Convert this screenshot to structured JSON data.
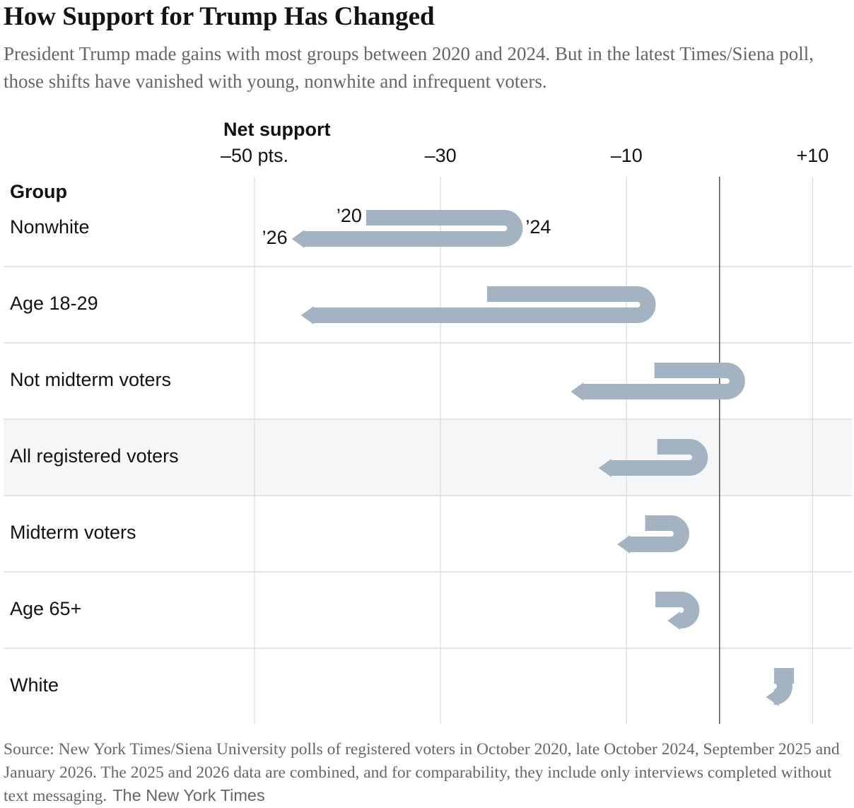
{
  "header": {
    "title": "How Support for Trump Has Changed",
    "subtitle": "President Trump made gains with most groups between 2020 and 2024. But in the latest Times/Siena poll, those shifts have vanished with young, nonwhite and infrequent voters."
  },
  "chart_data": {
    "type": "arrow-turn",
    "x_axis_label": "Net support",
    "category_label": "Group",
    "categories": [
      "Nonwhite",
      "Age 18-29",
      "Not midterm voters",
      "All registered voters",
      "Midterm voters",
      "Age 65+",
      "White"
    ],
    "series": [
      {
        "name": "’20",
        "values": [
          -38,
          -25,
          -7,
          -6.7,
          -8,
          -6.9,
          8
        ]
      },
      {
        "name": "’24",
        "values": [
          -22,
          -7.7,
          1.9,
          -2.1,
          -4.1,
          -3,
          7
        ]
      },
      {
        "name": "’26",
        "values": [
          -46,
          -45,
          -16,
          -13,
          -11,
          -5.6,
          5
        ]
      }
    ],
    "color": "#a3b3c2",
    "xlim": [
      -50,
      14
    ],
    "xticks": [
      {
        "value": -50,
        "label": "–50 pts."
      },
      {
        "value": -30,
        "label": "–30"
      },
      {
        "value": -10,
        "label": "–10"
      },
      {
        "value": 10,
        "label": "+10"
      }
    ],
    "reference_line": 0,
    "grid": true,
    "highlight_index": 3
  },
  "footer": {
    "source": "Source: New York Times/Siena University polls of registered voters in October 2020, late October 2024, September 2025 and January 2026. The 2025 and 2026 data are combined, and for comparability, they include only interviews completed without text messaging.",
    "credit": "The New York Times"
  }
}
